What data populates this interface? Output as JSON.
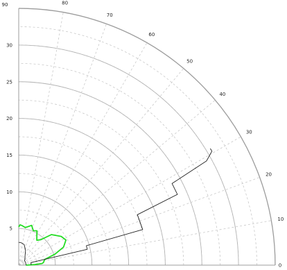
{
  "chart_data": {
    "type": "line",
    "coordinate_system": "polar",
    "title": "",
    "angle_unit": "degrees",
    "angle_range": [
      0,
      90
    ],
    "radius_range": [
      0,
      35
    ],
    "grid": true,
    "legend": "none",
    "angle_ticks": [
      {
        "value": 0,
        "label": "0"
      },
      {
        "value": 10,
        "label": "10"
      },
      {
        "value": 20,
        "label": "20"
      },
      {
        "value": 30,
        "label": "30"
      },
      {
        "value": 40,
        "label": "40"
      },
      {
        "value": 50,
        "label": "50"
      },
      {
        "value": 60,
        "label": "60"
      },
      {
        "value": 70,
        "label": "70"
      },
      {
        "value": 80,
        "label": "80"
      },
      {
        "value": 90,
        "label": "90"
      }
    ],
    "radius_ticks": [
      {
        "value": 5,
        "label": "5"
      },
      {
        "value": 10,
        "label": "10"
      },
      {
        "value": 15,
        "label": "15"
      },
      {
        "value": 20,
        "label": "20"
      },
      {
        "value": 25,
        "label": "25"
      },
      {
        "value": 30,
        "label": "30"
      }
    ],
    "series": [
      {
        "color": "#22dd22",
        "points": [
          [
            0,
            1.0
          ],
          [
            2,
            2.2
          ],
          [
            4,
            3.2
          ],
          [
            6,
            3.4
          ],
          [
            9,
            3.5
          ],
          [
            12,
            3.6
          ],
          [
            17,
            5.2
          ],
          [
            22,
            6.6
          ],
          [
            28,
            7.3
          ],
          [
            34,
            7.0
          ],
          [
            43,
            6.1
          ],
          [
            49,
            4.6
          ],
          [
            54,
            4.2
          ],
          [
            62,
            5.3
          ],
          [
            67,
            5.1
          ],
          [
            72,
            5.7
          ],
          [
            80,
            5.2
          ],
          [
            85,
            5.4
          ],
          [
            88,
            5.5
          ],
          [
            90,
            5.2
          ]
        ]
      },
      {
        "color": "#222222",
        "points": [
          [
            0,
            1.7
          ],
          [
            12,
            1.7
          ],
          [
            13,
            9.6
          ],
          [
            16,
            9.6
          ],
          [
            16,
            17.6
          ],
          [
            23,
            17.6
          ],
          [
            24,
            23.7
          ],
          [
            28,
            23.7
          ],
          [
            29,
            29.3
          ],
          [
            30.5,
            30.6
          ],
          [
            31.3,
            30.6
          ]
        ]
      },
      {
        "color": "#222222",
        "points": [
          [
            0,
            1.0
          ],
          [
            20,
            1.0
          ],
          [
            24,
            1.0
          ],
          [
            37,
            1.0
          ],
          [
            45,
            1.2
          ],
          [
            55,
            1.5
          ],
          [
            65,
            2.2
          ],
          [
            75,
            2.9
          ],
          [
            85,
            3.1
          ],
          [
            90,
            3.1
          ]
        ]
      }
    ]
  }
}
